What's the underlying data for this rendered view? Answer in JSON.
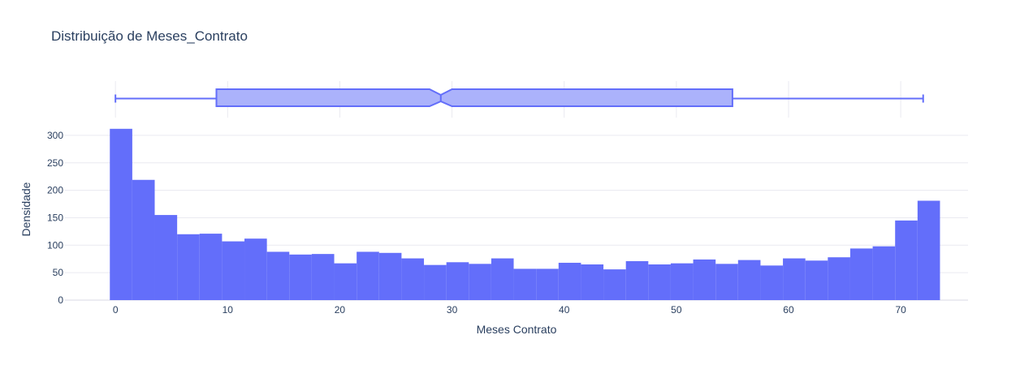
{
  "chart_data": {
    "type": "bar",
    "title": "Distribuição de Meses_Contrato",
    "xlabel": "Meses Contrato",
    "ylabel": "Densidade",
    "xlim": [
      -4.5,
      76
    ],
    "ylim": [
      0,
      325
    ],
    "x_ticks": [
      0,
      10,
      20,
      30,
      40,
      50,
      60,
      70
    ],
    "y_ticks": [
      0,
      50,
      100,
      150,
      200,
      250,
      300
    ],
    "bin_start": -0.5,
    "bin_width": 2,
    "values": [
      312,
      219,
      155,
      120,
      121,
      107,
      112,
      88,
      83,
      84,
      67,
      88,
      86,
      76,
      64,
      69,
      66,
      76,
      57,
      57,
      68,
      65,
      56,
      71,
      65,
      67,
      74,
      66,
      73,
      63,
      76,
      72,
      78,
      94,
      98,
      145,
      181
    ],
    "grid": true,
    "legend": "none",
    "colors": {
      "bar": "#636efa",
      "box_fill": "#abb2fb",
      "box_line": "#636efa",
      "grid": "#eaeaf0",
      "text": "#2a3f5f"
    },
    "box": {
      "min": 0,
      "q1": 9,
      "median": 29,
      "q3": 55,
      "max": 72,
      "notch_low": 28,
      "notch_high": 30
    }
  }
}
